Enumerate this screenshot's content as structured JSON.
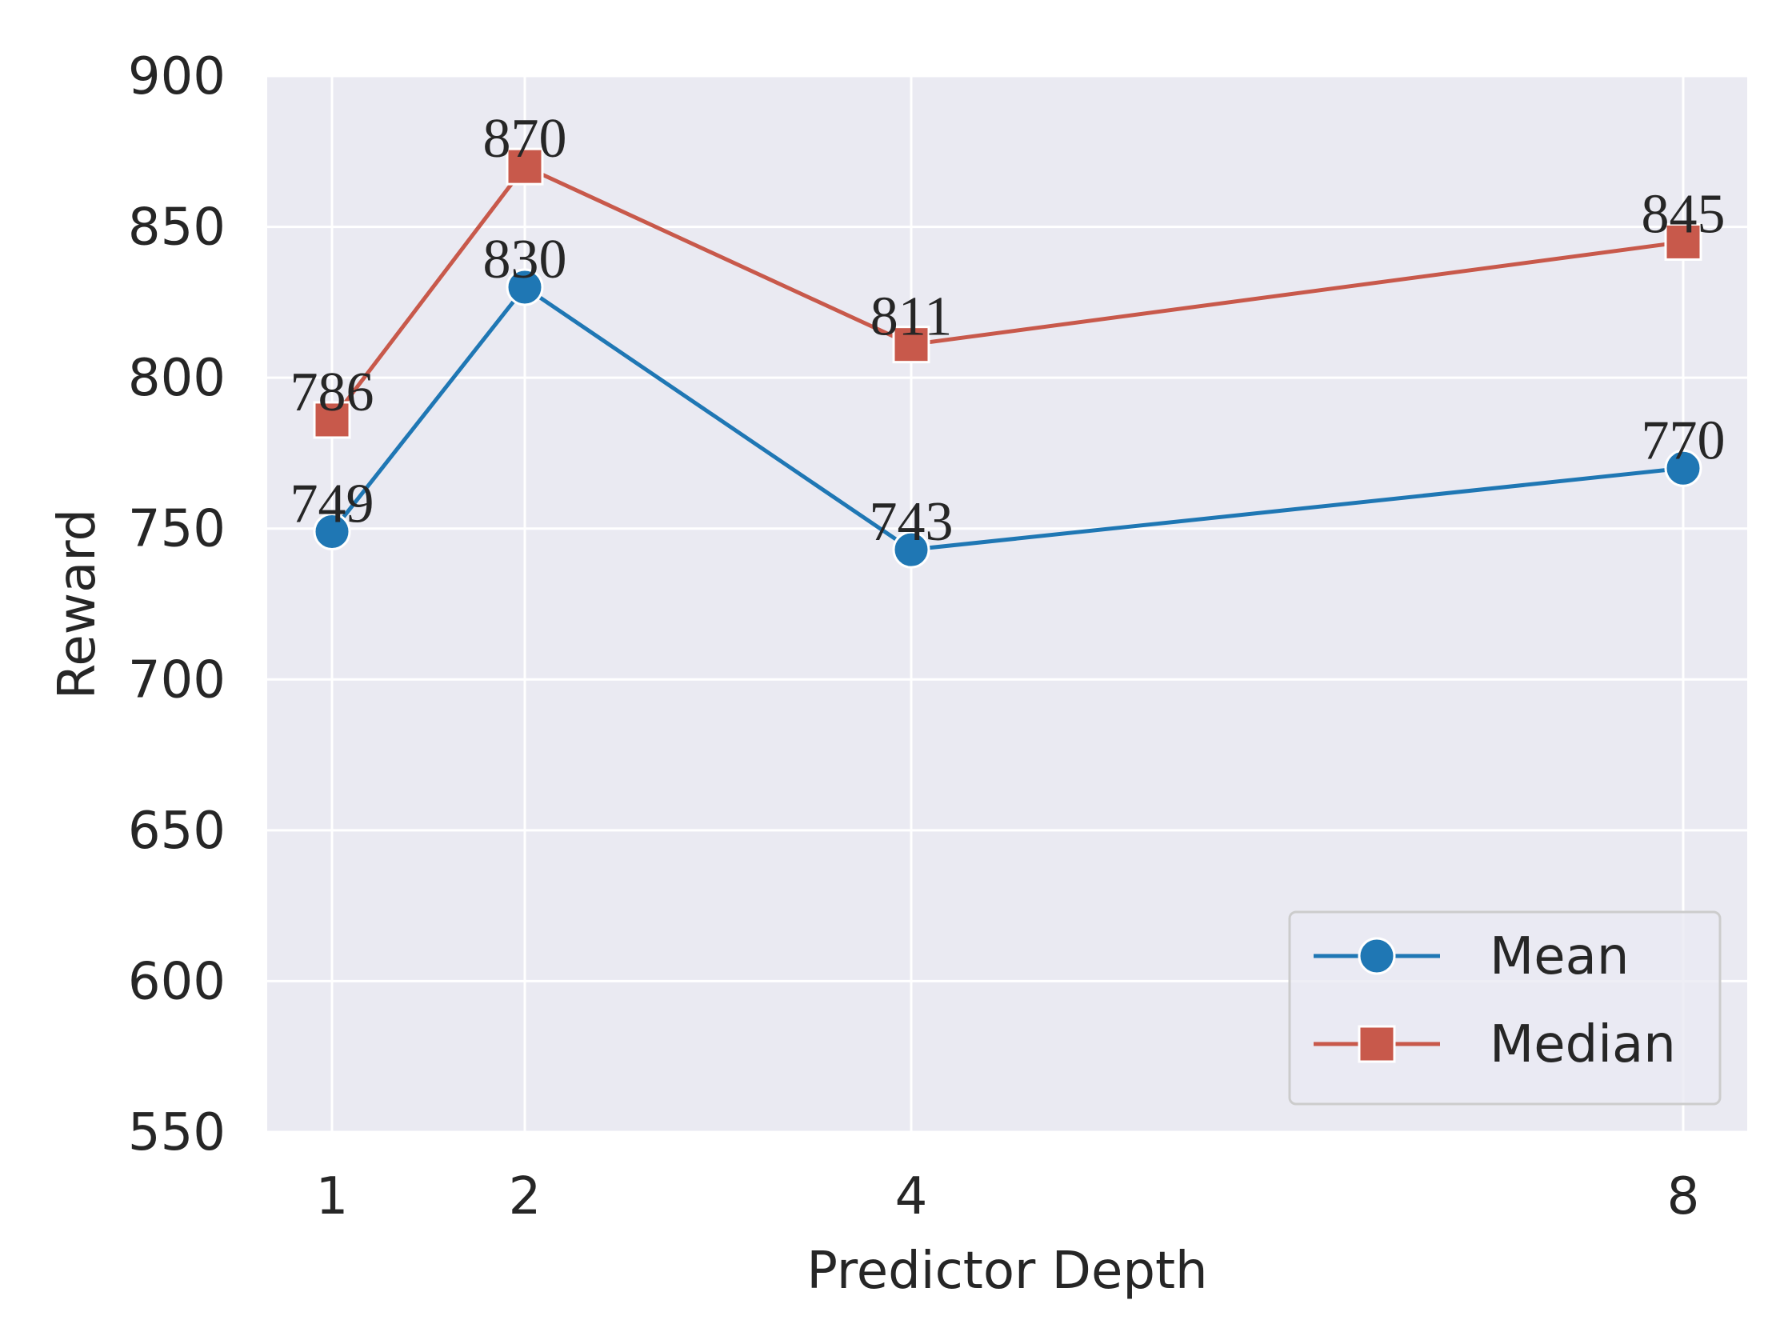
{
  "chart_data": {
    "type": "line",
    "x": [
      1,
      2,
      4,
      8
    ],
    "xticks": [
      "1",
      "2",
      "4",
      "8"
    ],
    "xlabel": "Predictor Depth",
    "ylabel": "Reward",
    "ylim": [
      550,
      900
    ],
    "yticks": [
      550,
      600,
      650,
      700,
      750,
      800,
      850,
      900
    ],
    "grid": true,
    "legend": "lower-right",
    "series": [
      {
        "name": "Mean",
        "marker": "circle",
        "color": "#1f77b4",
        "values": [
          749,
          830,
          743,
          770
        ],
        "labels": [
          "749",
          "830",
          "743",
          "770"
        ]
      },
      {
        "name": "Median",
        "marker": "square",
        "color": "#c8594b",
        "values": [
          786,
          870,
          811,
          845
        ],
        "labels": [
          "786",
          "870",
          "811",
          "845"
        ]
      }
    ],
    "colors": {
      "plot_background": "#eaeaf2",
      "grid": "#ffffff",
      "text": "#262626"
    }
  }
}
